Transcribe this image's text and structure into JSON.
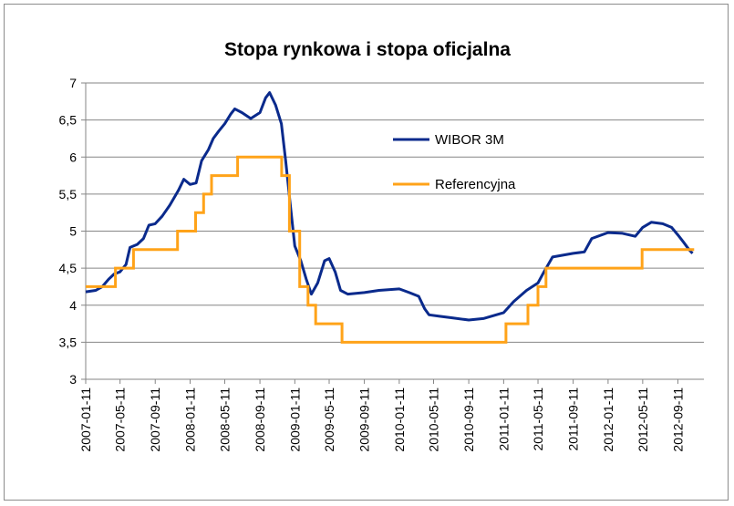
{
  "chart_data": {
    "type": "line",
    "title": "Stopa rynkowa i stopa oficjalna",
    "xlabel": "",
    "ylabel": "",
    "ylim": [
      3,
      7
    ],
    "yticks": [
      "3",
      "3,5",
      "4",
      "4,5",
      "5",
      "5,5",
      "6",
      "6,5",
      "7"
    ],
    "ytick_values": [
      3,
      3.5,
      4,
      4.5,
      5,
      5.5,
      6,
      6.5,
      7
    ],
    "xlim": [
      "2007-01-11",
      "2012-12-11"
    ],
    "xticks": [
      "2007-01-11",
      "2007-05-11",
      "2007-09-11",
      "2008-01-11",
      "2008-05-11",
      "2008-09-11",
      "2009-01-11",
      "2009-05-11",
      "2009-09-11",
      "2010-01-11",
      "2010-05-11",
      "2010-09-11",
      "2011-01-11",
      "2011-05-11",
      "2011-09-11",
      "2012-01-11",
      "2012-05-11",
      "2012-09-11"
    ],
    "grid": true,
    "legend": "right",
    "series": [
      {
        "name": "WIBOR 3M",
        "color": "#0a2a8c",
        "points": [
          [
            "2007-01-11",
            4.18
          ],
          [
            "2007-02-15",
            4.2
          ],
          [
            "2007-03-10",
            4.25
          ],
          [
            "2007-04-01",
            4.35
          ],
          [
            "2007-04-20",
            4.42
          ],
          [
            "2007-05-11",
            4.45
          ],
          [
            "2007-06-01",
            4.55
          ],
          [
            "2007-06-15",
            4.78
          ],
          [
            "2007-07-10",
            4.82
          ],
          [
            "2007-08-01",
            4.9
          ],
          [
            "2007-08-20",
            5.08
          ],
          [
            "2007-09-11",
            5.1
          ],
          [
            "2007-10-05",
            5.2
          ],
          [
            "2007-11-01",
            5.35
          ],
          [
            "2007-12-01",
            5.55
          ],
          [
            "2007-12-20",
            5.7
          ],
          [
            "2008-01-11",
            5.63
          ],
          [
            "2008-02-01",
            5.65
          ],
          [
            "2008-02-20",
            5.95
          ],
          [
            "2008-03-15",
            6.1
          ],
          [
            "2008-04-01",
            6.25
          ],
          [
            "2008-04-20",
            6.35
          ],
          [
            "2008-05-11",
            6.45
          ],
          [
            "2008-06-01",
            6.58
          ],
          [
            "2008-06-15",
            6.65
          ],
          [
            "2008-07-10",
            6.6
          ],
          [
            "2008-08-10",
            6.52
          ],
          [
            "2008-09-11",
            6.6
          ],
          [
            "2008-10-01",
            6.8
          ],
          [
            "2008-10-15",
            6.87
          ],
          [
            "2008-11-05",
            6.7
          ],
          [
            "2008-11-25",
            6.45
          ],
          [
            "2008-12-10",
            5.95
          ],
          [
            "2008-12-25",
            5.4
          ],
          [
            "2009-01-11",
            4.8
          ],
          [
            "2009-02-01",
            4.6
          ],
          [
            "2009-02-20",
            4.35
          ],
          [
            "2009-03-10",
            4.15
          ],
          [
            "2009-04-01",
            4.3
          ],
          [
            "2009-04-25",
            4.6
          ],
          [
            "2009-05-11",
            4.63
          ],
          [
            "2009-06-01",
            4.45
          ],
          [
            "2009-06-20",
            4.2
          ],
          [
            "2009-07-15",
            4.15
          ],
          [
            "2009-09-11",
            4.17
          ],
          [
            "2009-11-01",
            4.2
          ],
          [
            "2010-01-11",
            4.22
          ],
          [
            "2010-02-15",
            4.17
          ],
          [
            "2010-03-20",
            4.12
          ],
          [
            "2010-04-10",
            3.95
          ],
          [
            "2010-04-25",
            3.87
          ],
          [
            "2010-06-01",
            3.85
          ],
          [
            "2010-07-15",
            3.83
          ],
          [
            "2010-09-11",
            3.8
          ],
          [
            "2010-11-01",
            3.82
          ],
          [
            "2011-01-11",
            3.9
          ],
          [
            "2011-02-15",
            4.05
          ],
          [
            "2011-04-01",
            4.2
          ],
          [
            "2011-05-11",
            4.3
          ],
          [
            "2011-06-01",
            4.45
          ],
          [
            "2011-07-01",
            4.65
          ],
          [
            "2011-09-11",
            4.7
          ],
          [
            "2011-10-20",
            4.72
          ],
          [
            "2011-11-15",
            4.9
          ],
          [
            "2012-01-11",
            4.98
          ],
          [
            "2012-03-01",
            4.97
          ],
          [
            "2012-04-15",
            4.93
          ],
          [
            "2012-05-11",
            5.05
          ],
          [
            "2012-06-10",
            5.12
          ],
          [
            "2012-07-20",
            5.1
          ],
          [
            "2012-08-20",
            5.05
          ],
          [
            "2012-09-11",
            4.95
          ],
          [
            "2012-10-01",
            4.85
          ],
          [
            "2012-10-20",
            4.75
          ],
          [
            "2012-11-01",
            4.7
          ]
        ]
      },
      {
        "name": "Referencyjna",
        "color": "#ffa319",
        "points": [
          [
            "2007-01-11",
            4.25
          ],
          [
            "2007-04-25",
            4.25
          ],
          [
            "2007-04-25",
            4.5
          ],
          [
            "2007-06-27",
            4.5
          ],
          [
            "2007-06-27",
            4.75
          ],
          [
            "2007-11-28",
            4.75
          ],
          [
            "2007-11-28",
            5.0
          ],
          [
            "2008-01-30",
            5.0
          ],
          [
            "2008-01-30",
            5.25
          ],
          [
            "2008-02-27",
            5.25
          ],
          [
            "2008-02-27",
            5.5
          ],
          [
            "2008-03-26",
            5.5
          ],
          [
            "2008-03-26",
            5.75
          ],
          [
            "2008-06-25",
            5.75
          ],
          [
            "2008-06-25",
            6.0
          ],
          [
            "2008-11-26",
            6.0
          ],
          [
            "2008-11-26",
            5.75
          ],
          [
            "2008-12-23",
            5.75
          ],
          [
            "2008-12-23",
            5.0
          ],
          [
            "2009-01-28",
            5.0
          ],
          [
            "2009-01-28",
            4.25
          ],
          [
            "2009-02-26",
            4.25
          ],
          [
            "2009-02-26",
            4.0
          ],
          [
            "2009-03-25",
            4.0
          ],
          [
            "2009-03-25",
            3.75
          ],
          [
            "2009-06-25",
            3.75
          ],
          [
            "2009-06-25",
            3.5
          ],
          [
            "2011-01-19",
            3.5
          ],
          [
            "2011-01-19",
            3.75
          ],
          [
            "2011-04-06",
            3.75
          ],
          [
            "2011-04-06",
            4.0
          ],
          [
            "2011-05-11",
            4.0
          ],
          [
            "2011-05-11",
            4.25
          ],
          [
            "2011-06-08",
            4.25
          ],
          [
            "2011-06-08",
            4.5
          ],
          [
            "2012-05-09",
            4.5
          ],
          [
            "2012-05-09",
            4.75
          ],
          [
            "2012-11-07",
            4.75
          ],
          [
            "2012-11-07",
            4.75
          ]
        ]
      }
    ]
  }
}
